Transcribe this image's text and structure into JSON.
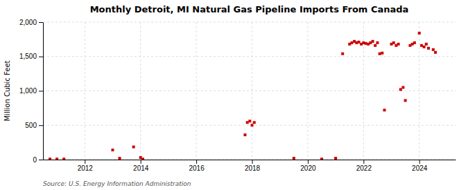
{
  "chart_data": {
    "type": "scatter",
    "title": "Monthly Detroit, MI Natural Gas Pipeline Imports From Canada",
    "ylabel": "Million Cubic Feet",
    "annotations": [
      "Source: U.S. Energy Information Administration"
    ],
    "color": "#cc0000",
    "marker": "square",
    "grid": true,
    "xlim": [
      2010.5,
      2025.3
    ],
    "xticks": [
      2012,
      2014,
      2016,
      2018,
      2020,
      2022,
      2024
    ],
    "ylim": [
      0,
      2000
    ],
    "yticks": [
      0,
      500,
      {
        "value": 1000,
        "label": "1,000"
      },
      {
        "value": 1500,
        "label": "1,500"
      },
      {
        "value": 2000,
        "label": "2,000"
      }
    ],
    "x": [
      2010.75,
      2011.0,
      2011.25,
      2013.0,
      2013.25,
      2013.75,
      2014.0,
      2014.08,
      2017.75,
      2017.83,
      2017.92,
      2018.0,
      2018.08,
      2019.5,
      2020.5,
      2021.0,
      2021.25,
      2021.5,
      2021.58,
      2021.67,
      2021.75,
      2021.83,
      2021.92,
      2022.0,
      2022.08,
      2022.17,
      2022.25,
      2022.33,
      2022.42,
      2022.5,
      2022.58,
      2022.67,
      2022.75,
      2023.0,
      2023.08,
      2023.17,
      2023.25,
      2023.33,
      2023.42,
      2023.5,
      2023.67,
      2023.75,
      2023.83,
      2024.0,
      2024.08,
      2024.17,
      2024.25,
      2024.33,
      2024.5,
      2024.58
    ],
    "values": [
      8,
      8,
      8,
      140,
      20,
      185,
      30,
      8,
      360,
      540,
      560,
      500,
      540,
      20,
      8,
      20,
      1540,
      1680,
      1700,
      1720,
      1700,
      1710,
      1680,
      1700,
      1690,
      1680,
      1700,
      1720,
      1660,
      1700,
      1540,
      1550,
      720,
      1680,
      1700,
      1660,
      1680,
      1020,
      1050,
      860,
      1660,
      1680,
      1700,
      1840,
      1660,
      1640,
      1680,
      1620,
      1600,
      1560
    ]
  }
}
